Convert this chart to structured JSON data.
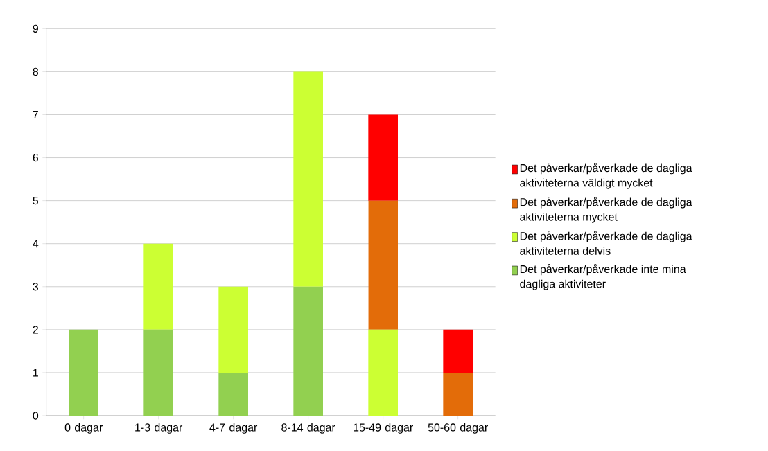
{
  "chart_data": {
    "type": "bar",
    "stacked": true,
    "categories": [
      "0 dagar",
      "1-3 dagar",
      "4-7 dagar",
      "8-14 dagar",
      "15-49 dagar",
      "50-60 dagar"
    ],
    "series": [
      {
        "name": "Det påverkar/påverkade inte mina dagliga aktiviteter",
        "color": "#92d050",
        "values": [
          2,
          2,
          1,
          3,
          0,
          0
        ]
      },
      {
        "name": "Det påverkar/påverkade de dagliga aktiviteterna delvis",
        "color": "#ccff33",
        "values": [
          0,
          2,
          2,
          5,
          2,
          0
        ]
      },
      {
        "name": "Det påverkar/påverkade de dagliga aktiviteterna mycket",
        "color": "#e36c09",
        "values": [
          0,
          0,
          0,
          0,
          3,
          1
        ]
      },
      {
        "name": "Det påverkar/påverkade de dagliga aktiviteterna väldigt mycket",
        "color": "#ff0000",
        "values": [
          0,
          0,
          0,
          0,
          2,
          1
        ]
      }
    ],
    "ylim": [
      0,
      9
    ],
    "yticks": [
      0,
      1,
      2,
      3,
      4,
      5,
      6,
      7,
      8,
      9
    ],
    "grid": "y",
    "legend": "right"
  }
}
